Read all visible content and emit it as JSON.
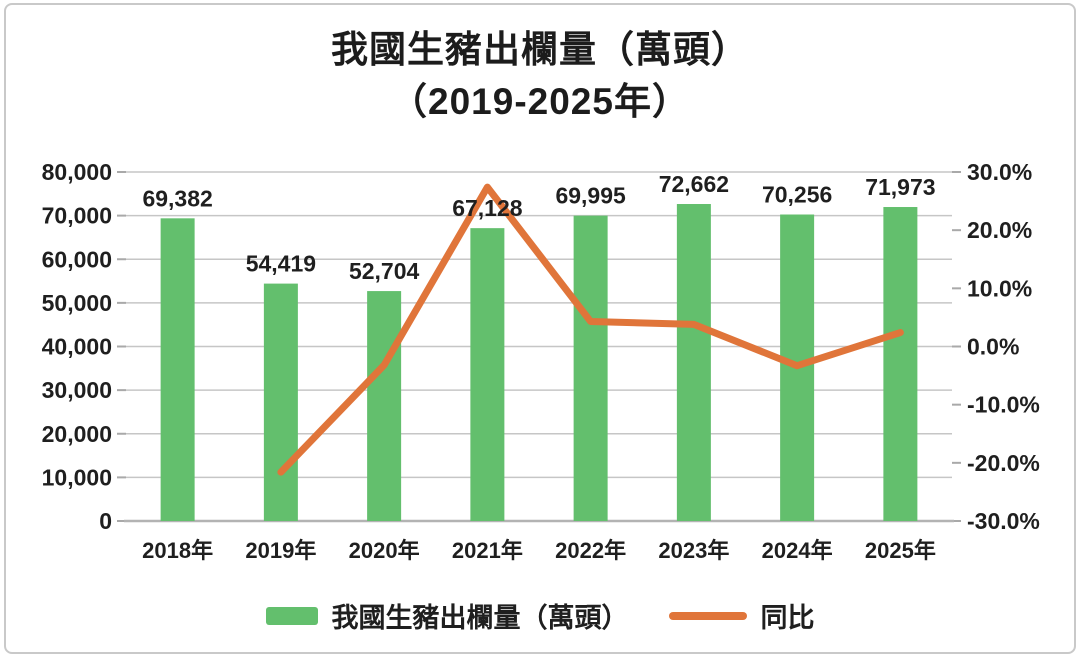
{
  "title": {
    "line1": "我國生豬出欄量（萬頭）",
    "line2": "（2019-2025年）"
  },
  "legend": {
    "bar_label": "我國生豬出欄量（萬頭）",
    "line_label": "同比"
  },
  "colors": {
    "bar": "#63bf6d",
    "line": "#e0753a",
    "grid": "#c6c6c6",
    "axis": "#b3b3b3",
    "tick": "#a9a9a9",
    "text": "#1f1f1f",
    "border": "#c9c9c9"
  },
  "chart_data": {
    "type": "bar",
    "subtype": "bar+line combo, dual axis",
    "title": "我國生豬出欄量（萬頭）（2019-2025年）",
    "categories": [
      "2018年",
      "2019年",
      "2020年",
      "2021年",
      "2022年",
      "2023年",
      "2024年",
      "2025年"
    ],
    "series": [
      {
        "name": "我國生豬出欄量（萬頭）",
        "type": "bar",
        "axis": "left",
        "color": "#63bf6d",
        "values": [
          69382,
          54419,
          52704,
          67128,
          69995,
          72662,
          70256,
          71973
        ],
        "data_labels": [
          "69,382",
          "54,419",
          "52,704",
          "67,128",
          "69,995",
          "72,662",
          "70,256",
          "71,973"
        ]
      },
      {
        "name": "同比",
        "type": "line",
        "axis": "right",
        "color": "#e0753a",
        "values": [
          null,
          -21.6,
          -3.2,
          27.4,
          4.3,
          3.8,
          -3.3,
          2.4
        ]
      }
    ],
    "y_left": {
      "min": 0,
      "max": 80000,
      "step": 10000,
      "tick_labels": [
        "0",
        "10,000",
        "20,000",
        "30,000",
        "40,000",
        "50,000",
        "60,000",
        "70,000",
        "80,000"
      ]
    },
    "y_right": {
      "min": -30,
      "max": 30,
      "step": 10,
      "suffix": "%",
      "tick_labels": [
        "-30.0%",
        "-20.0%",
        "-10.0%",
        "0.0%",
        "10.0%",
        "20.0%",
        "30.0%"
      ]
    },
    "grid": true,
    "legend_position": "bottom"
  }
}
